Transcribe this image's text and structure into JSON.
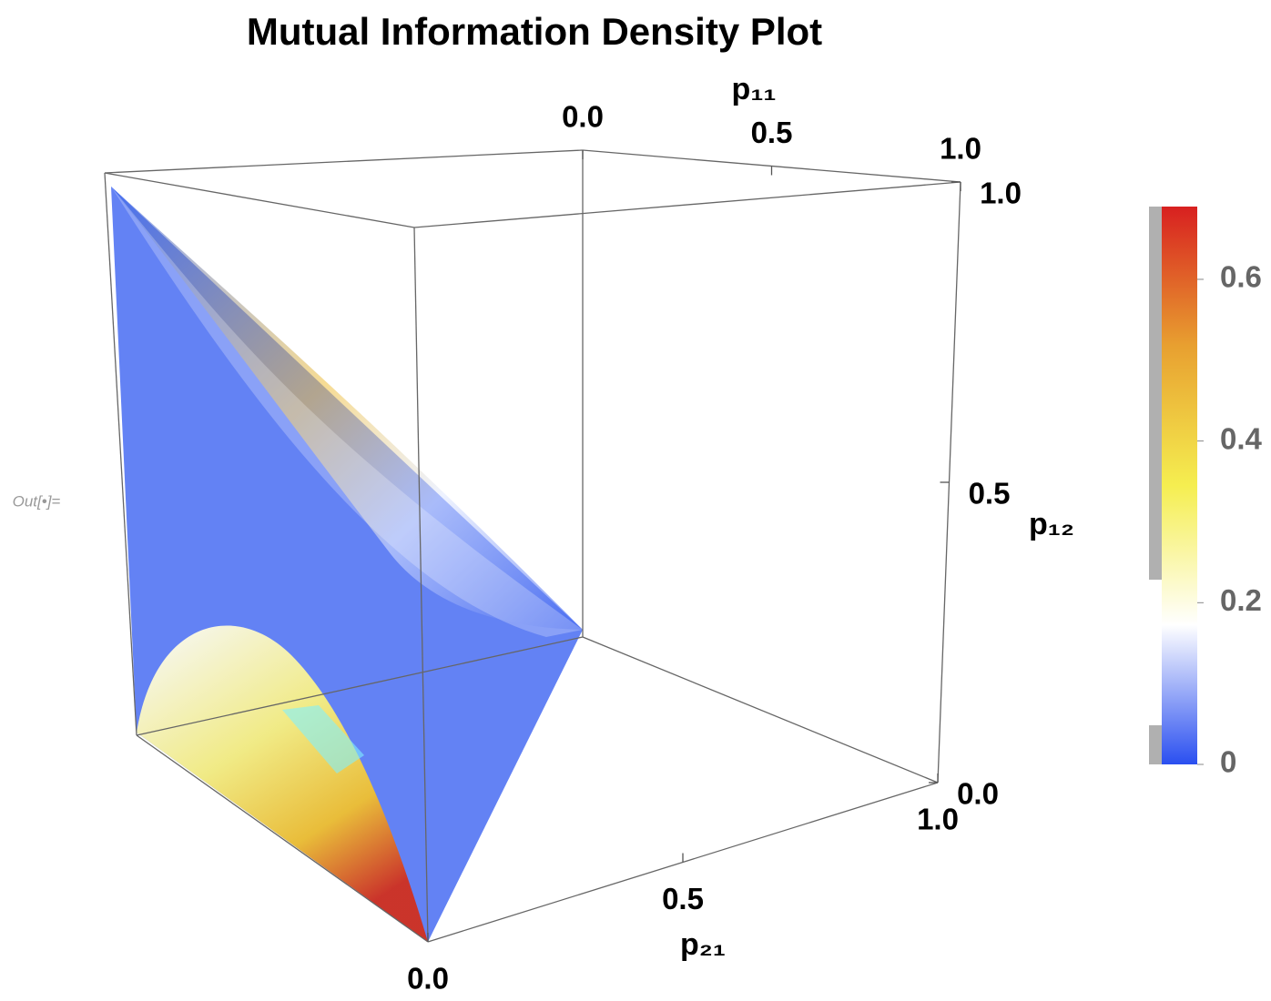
{
  "cell_label": "Out[•]=",
  "chart_data": {
    "type": "density3d",
    "title": "Mutual Information Density Plot",
    "x_label": "p₁₁",
    "y_label": "p₂₁",
    "z_label": "p₁₂",
    "xlim": [
      0,
      1
    ],
    "ylim": [
      0,
      1
    ],
    "zlim": [
      0,
      1
    ],
    "xticks": [
      {
        "value": 0,
        "label": "0.0"
      },
      0.5,
      {
        "value": 1,
        "label": "1.0"
      }
    ],
    "yticks": [
      {
        "value": 0,
        "label": "0.0"
      },
      0.5,
      {
        "value": 1,
        "label": "1.0"
      }
    ],
    "zticks": [
      {
        "value": 0,
        "label": "0.0"
      },
      0.5,
      {
        "value": 1,
        "label": "1.0"
      }
    ],
    "colorbar": {
      "lim": [
        0,
        0.69
      ],
      "ticks": [
        0,
        0.2,
        0.4,
        0.6
      ],
      "colors": [
        "#2a4ff0",
        "#ffffff",
        "#f5ee50",
        "#e8a030",
        "#d82020"
      ]
    }
  }
}
